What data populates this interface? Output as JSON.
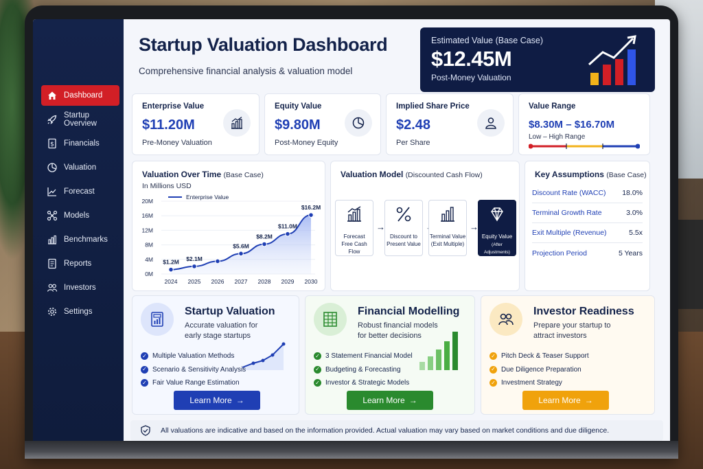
{
  "header": {
    "title": "Startup Valuation Dashboard",
    "subtitle": "Comprehensive financial analysis & valuation model"
  },
  "estimated": {
    "label": "Estimated Value (Base Case)",
    "value": "$12.45M",
    "sub": "Post-Money Valuation"
  },
  "sidebar": {
    "items": [
      {
        "label": "Dashboard",
        "icon": "home-icon",
        "active": true
      },
      {
        "label": "Startup Overview",
        "icon": "rocket-icon"
      },
      {
        "label": "Financials",
        "icon": "dollar-doc-icon"
      },
      {
        "label": "Valuation",
        "icon": "pie-icon"
      },
      {
        "label": "Forecast",
        "icon": "trend-icon"
      },
      {
        "label": "Models",
        "icon": "network-icon"
      },
      {
        "label": "Benchmarks",
        "icon": "bars-icon"
      },
      {
        "label": "Reports",
        "icon": "report-icon"
      },
      {
        "label": "Investors",
        "icon": "users-icon"
      },
      {
        "label": "Settings",
        "icon": "gear-icon"
      }
    ]
  },
  "kpis": [
    {
      "label": "Enterprise Value",
      "value": "$11.20M",
      "sub": "Pre-Money Valuation",
      "icon": "bar-chart-icon"
    },
    {
      "label": "Equity Value",
      "value": "$9.80M",
      "sub": "Post-Money Equity",
      "icon": "pie-chart-icon"
    },
    {
      "label": "Implied Share Price",
      "value": "$2.48",
      "sub": "Per Share",
      "icon": "person-icon"
    },
    {
      "label": "Value Range",
      "value": "$8.30M – $16.70M",
      "sub": "Low – High Range"
    }
  ],
  "value_range": {
    "low": 8.3,
    "high": 16.7
  },
  "valuation_chart": {
    "title": "Valuation Over Time",
    "note": "(Base Case)",
    "sub": "In Millions USD",
    "legend": "Enterprise Value"
  },
  "chart_data": {
    "type": "area",
    "title": "Valuation Over Time",
    "x": [
      "2024",
      "2025",
      "2026",
      "2027",
      "2028",
      "2029",
      "2030"
    ],
    "series": [
      {
        "name": "Enterprise Value",
        "values": [
          1.2,
          2.1,
          3.5,
          5.6,
          8.2,
          11.0,
          16.2
        ],
        "labels": [
          "$1.2M",
          "$2.1M",
          "",
          "$5.6M",
          "$8.2M",
          "$11.0M",
          "$16.2M"
        ]
      }
    ],
    "yticks": [
      "0M",
      "4M",
      "8M",
      "12M",
      "16M",
      "20M"
    ],
    "ylim": [
      0,
      20
    ],
    "legend": "top-left"
  },
  "model": {
    "title": "Valuation Model",
    "note": "(Discounted Cash Flow)",
    "steps": [
      {
        "line1": "Forecast",
        "line2": "Free Cash Flow",
        "icon": "bar-chart-icon"
      },
      {
        "line1": "Discount to",
        "line2": "Present Value",
        "icon": "percent-icon"
      },
      {
        "line1": "Terminal Value",
        "line2": "(Exit Multiple)",
        "icon": "columns-icon"
      },
      {
        "line1": "Equity Value",
        "line2": "(After Adjustments)",
        "icon": "diamond-icon"
      }
    ]
  },
  "assumptions": {
    "title": "Key Assumptions",
    "note": "(Base Case)",
    "rows": [
      {
        "k": "Discount Rate (WACC)",
        "v": "18.0%"
      },
      {
        "k": "Terminal Growth Rate",
        "v": "3.0%"
      },
      {
        "k": "Exit Multiple (Revenue)",
        "v": "5.5x"
      },
      {
        "k": "Projection Period",
        "v": "5 Years"
      }
    ]
  },
  "services": [
    {
      "title": "Startup Valuation",
      "desc1": "Accurate valuation for",
      "desc2": "early stage startups",
      "items": [
        "Multiple Valuation Methods",
        "Scenario & Sensitivity Analysis",
        "Fair Value Range Estimation"
      ],
      "button": "Learn More",
      "color": "#1f3fb4",
      "bg": "#f5f8ff",
      "icon": "report-chart-icon"
    },
    {
      "title": "Financial Modelling",
      "desc1": "Robust financial models",
      "desc2": "for better decisions",
      "items": [
        "3 Statement Financial Model",
        "Budgeting & Forecasting",
        "Investor & Strategic Models"
      ],
      "button": "Learn More",
      "color": "#2a8a2e",
      "bg": "#f5fbf4",
      "icon": "spreadsheet-icon"
    },
    {
      "title": "Investor Readiness",
      "desc1": "Prepare your startup to",
      "desc2": "attract investors",
      "items": [
        "Pitch Deck & Teaser Support",
        "Due Diligence Preparation",
        "Investment Strategy"
      ],
      "button": "Learn More",
      "color": "#f0a20c",
      "bg": "#fffaf1",
      "icon": "users-icon"
    }
  ],
  "disclaimer": "All valuations are indicative and based on the information provided. Actual valuation may vary based on market conditions and due diligence."
}
